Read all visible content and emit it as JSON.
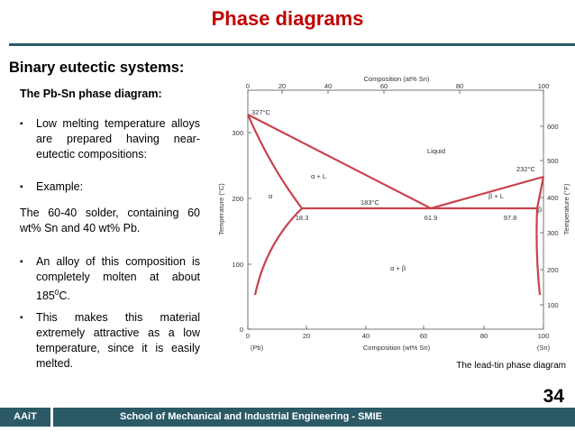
{
  "header": {
    "title": "Phase diagrams"
  },
  "subtitle": "Binary eutectic systems:",
  "heading": "The Pb-Sn phase diagram:",
  "paragraphs": [
    {
      "bullet": "▪",
      "text": "Low melting temperature alloys are prepared having near-eutectic compositions:"
    },
    {
      "bullet": "▪",
      "text": "Example:"
    },
    {
      "text": "The 60-40 solder, containing 60 wt% Sn and 40 wt% Pb."
    },
    {
      "bullet": "▪",
      "parts": [
        "An alloy of this composition is completely molten at about 185",
        "0",
        "C."
      ]
    },
    {
      "bullet": "▪",
      "text": "This makes this material extremely attractive as a low temperature, since it is easily melted."
    }
  ],
  "diagram": {
    "top_axis_title": "Composition (at% Sn)",
    "top_ticks": [
      "0",
      "20",
      "40",
      "60",
      "80",
      "100"
    ],
    "bottom_axis_title": "Composition (wt% Sn)",
    "bottom_ticks": [
      "0",
      "20",
      "40",
      "60",
      "80",
      "100"
    ],
    "left_end": "(Pb)",
    "right_end": "(Sn)",
    "left_axis_title": "Temperature (°C)",
    "left_ticks": [
      "0",
      "100",
      "200",
      "300"
    ],
    "right_axis_title": "Temperature (°F)",
    "right_ticks": [
      "100",
      "200",
      "300",
      "400",
      "500",
      "600"
    ],
    "labels": {
      "pb_melt": "327°C",
      "liquid": "Liquid",
      "alpha_l": "α + L",
      "eutectic_t": "183°C",
      "beta_l": "β + L",
      "sn_melt": "232°C",
      "alpha": "α",
      "beta": "β",
      "c_alpha": "18.3",
      "c_eut": "61.9",
      "c_beta": "97.8",
      "alpha_beta": "α + β"
    }
  },
  "caption": "The lead-tin phase diagram",
  "page_number": "34",
  "footer": {
    "left": "AAiT",
    "center": "School of Mechanical and Industrial Engineering - SMIE"
  }
}
